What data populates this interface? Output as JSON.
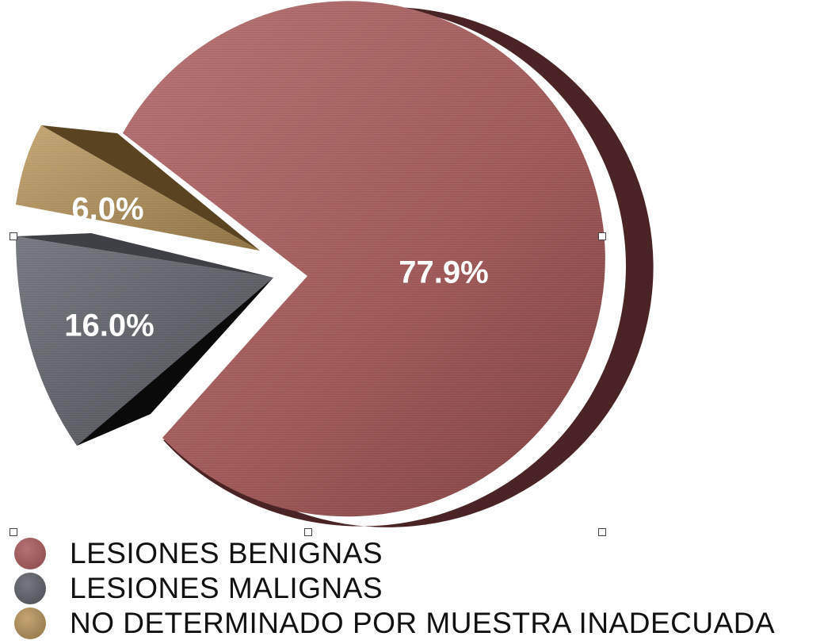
{
  "chart_data": {
    "type": "pie",
    "title": "",
    "legend_position": "bottom",
    "slices": [
      {
        "label": "LESIONES BENIGNAS",
        "value": 77.9,
        "display": "77.9%",
        "color": "#9c5656"
      },
      {
        "label": "LESIONES MALIGNAS",
        "value": 16.0,
        "display": "16.0%",
        "color": "#5a5c63"
      },
      {
        "label": "NO DETERMINADO POR MUESTRA INADECUADA",
        "value": 6.0,
        "display": "6.0%",
        "color": "#9e8250"
      }
    ]
  },
  "colors": {
    "benign_light": "#b06a6a",
    "benign_side": "#4a2424",
    "malign_light": "#6b6e75",
    "malign_side": "#121212",
    "undetermined_light": "#b89a63",
    "undetermined_side": "#5a4320",
    "label_text": "#ffffff",
    "legend_text": "#111111"
  }
}
